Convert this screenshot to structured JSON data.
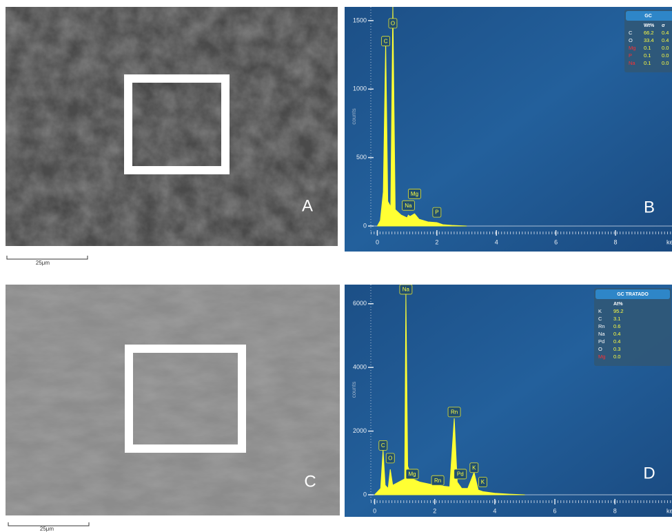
{
  "panels": [
    {
      "label": "A",
      "scale_bar": "25μm"
    },
    {
      "label": "C",
      "scale_bar": "25μm"
    }
  ],
  "chart_data": [
    {
      "type": "area",
      "label": "B",
      "color": "#ffff33",
      "x": [
        0,
        0.1,
        0.2,
        0.28,
        0.35,
        0.45,
        0.52,
        0.6,
        0.8,
        1.0,
        1.04,
        1.1,
        1.25,
        1.4,
        1.7,
        2.0,
        2.2,
        2.5,
        3
      ],
      "values": [
        0,
        40,
        250,
        1350,
        180,
        140,
        1600,
        120,
        80,
        60,
        80,
        70,
        90,
        50,
        30,
        25,
        10,
        5,
        0
      ],
      "xlim": [
        -1.1,
        9.9
      ],
      "ylim": [
        0,
        1600
      ],
      "xticks": [
        0,
        2,
        4,
        6,
        8
      ],
      "yticks": [
        0,
        500,
        1000,
        1500
      ],
      "x_label": "ke",
      "y_label": "counts",
      "peak_labels": [
        {
          "text": "C",
          "x": 0.28,
          "y": 1350
        },
        {
          "text": "O",
          "x": 0.52,
          "y": 1480
        },
        {
          "text": "Na",
          "x": 1.04,
          "y": 150
        },
        {
          "text": "Mg",
          "x": 1.25,
          "y": 235
        },
        {
          "text": "P",
          "x": 2.0,
          "y": 100
        }
      ],
      "table": {
        "title": "GC",
        "header": [
          "Wt%",
          "σ"
        ],
        "rows": [
          {
            "symbol": "C",
            "cells": [
              "66.2",
              "0.4"
            ],
            "highlight": false
          },
          {
            "symbol": "O",
            "cells": [
              "33.4",
              "0.4"
            ],
            "highlight": false
          },
          {
            "symbol": "Mg",
            "cells": [
              "0.1",
              "0.0"
            ],
            "highlight": true
          },
          {
            "symbol": "P",
            "cells": [
              "0.1",
              "0.0"
            ],
            "highlight": true
          },
          {
            "symbol": "Na",
            "cells": [
              "0.1",
              "0.0"
            ],
            "highlight": true
          }
        ]
      }
    },
    {
      "type": "area",
      "label": "D",
      "color": "#ffff33",
      "x": [
        0,
        0.2,
        0.28,
        0.35,
        0.45,
        0.52,
        0.6,
        0.8,
        1.0,
        1.04,
        1.1,
        1.25,
        1.5,
        2.0,
        2.5,
        2.65,
        2.75,
        2.9,
        3.1,
        3.31,
        3.45,
        3.6,
        4,
        4.5,
        5
      ],
      "values": [
        0,
        200,
        1400,
        300,
        200,
        800,
        300,
        400,
        500,
        6300,
        900,
        500,
        400,
        300,
        250,
        2400,
        400,
        200,
        200,
        700,
        150,
        100,
        50,
        20,
        0
      ],
      "xlim": [
        -1,
        9.9
      ],
      "ylim": [
        0,
        6600
      ],
      "xticks": [
        0,
        2,
        4,
        6,
        8
      ],
      "yticks": [
        0,
        2000,
        4000,
        6000
      ],
      "x_label": "ke",
      "y_label": "counts",
      "peak_labels": [
        {
          "text": "Na",
          "x": 1.04,
          "y": 6450
        },
        {
          "text": "C",
          "x": 0.28,
          "y": 1550
        },
        {
          "text": "O",
          "x": 0.52,
          "y": 1150
        },
        {
          "text": "Mg",
          "x": 1.25,
          "y": 650
        },
        {
          "text": "Rn",
          "x": 2.1,
          "y": 450
        },
        {
          "text": "Rn",
          "x": 2.65,
          "y": 2600
        },
        {
          "text": "Pd",
          "x": 2.85,
          "y": 650
        },
        {
          "text": "K",
          "x": 3.31,
          "y": 850
        },
        {
          "text": "K",
          "x": 3.6,
          "y": 400
        }
      ],
      "table": {
        "title": "GC TRATADO",
        "header": [
          "At%"
        ],
        "rows": [
          {
            "symbol": "K",
            "cells": [
              "95.2"
            ],
            "highlight": false
          },
          {
            "symbol": "C",
            "cells": [
              "3.1"
            ],
            "highlight": false
          },
          {
            "symbol": "Rn",
            "cells": [
              "0.6"
            ],
            "highlight": false
          },
          {
            "symbol": "Na",
            "cells": [
              "0.4"
            ],
            "highlight": false
          },
          {
            "symbol": "Pd",
            "cells": [
              "0.4"
            ],
            "highlight": false
          },
          {
            "symbol": "O",
            "cells": [
              "0.3"
            ],
            "highlight": false
          },
          {
            "symbol": "Mg",
            "cells": [
              "0.0"
            ],
            "highlight": true
          }
        ]
      }
    }
  ]
}
